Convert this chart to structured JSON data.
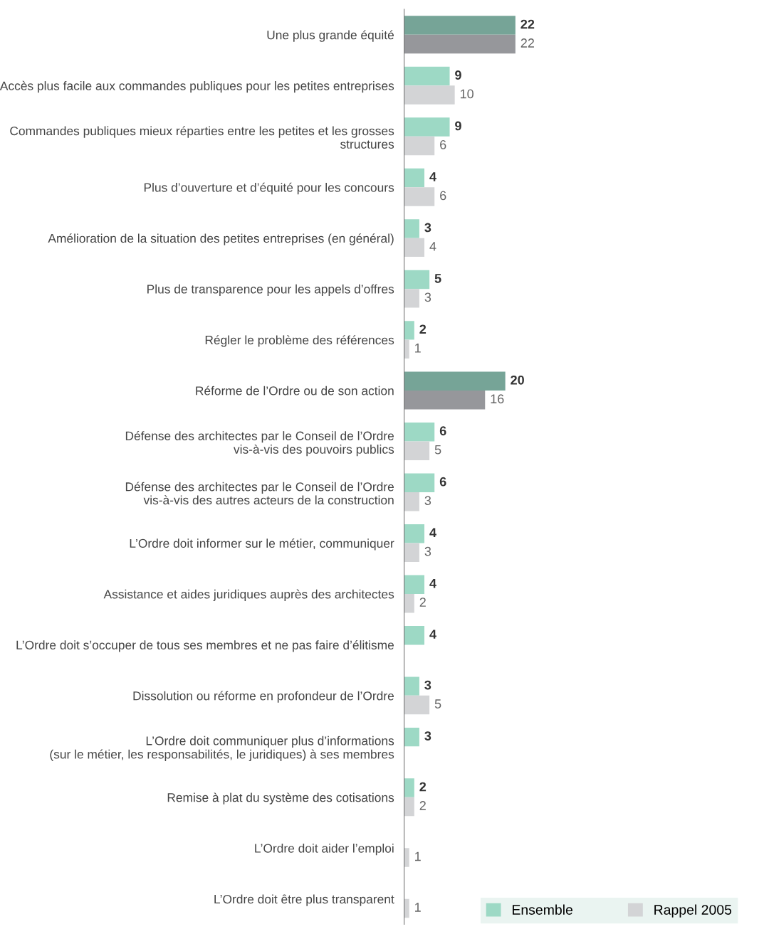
{
  "chart_data": {
    "type": "bar",
    "orientation": "horizontal",
    "categories": [
      "Une plus grande équité",
      "Accès plus facile aux commandes publiques pour les petites entreprises",
      "Commandes publiques mieux réparties entre les petites et les grosses\nstructures",
      "Plus d’ouverture et d’équité pour les concours",
      "Amélioration de la situation des petites entreprises (en général)",
      "Plus de transparence pour les appels d’offres",
      "Régler le problème des références",
      "Réforme de l’Ordre ou de son action",
      "Défense des architectes par le Conseil de l’Ordre\nvis-à-vis des pouvoirs publics",
      "Défense des architectes par le Conseil de l’Ordre\nvis-à-vis des autres acteurs de la construction",
      "L’Ordre doit informer sur le métier, communiquer",
      "Assistance et aides juridiques auprès des architectes",
      "L’Ordre doit s’occuper de tous ses membres et ne pas faire d’élitisme",
      "Dissolution ou réforme en profondeur de l’Ordre",
      "L’Ordre doit communiquer plus d’informations\n(sur le métier, les responsabilités, le juridiques) à ses membres",
      "Remise à plat du système des cotisations",
      "L’Ordre doit aider l’emploi",
      "L’Ordre doit être plus transparent"
    ],
    "series": [
      {
        "name": "Ensemble",
        "color": "#9dd9c5",
        "colors": [
          "#76a497",
          "#9dd9c5",
          "#9dd9c5",
          "#9dd9c5",
          "#9dd9c5",
          "#9dd9c5",
          "#9dd9c5",
          "#76a497",
          "#9dd9c5",
          "#9dd9c5",
          "#9dd9c5",
          "#9dd9c5",
          "#9dd9c5",
          "#9dd9c5",
          "#9dd9c5",
          "#9dd9c5",
          "#9dd9c5",
          "#9dd9c5"
        ],
        "values": [
          22,
          9,
          9,
          4,
          3,
          5,
          2,
          20,
          6,
          6,
          4,
          4,
          4,
          3,
          3,
          2,
          null,
          null
        ]
      },
      {
        "name": "Rappel 2005",
        "color": "#d3d4d6",
        "colors": [
          "#96979b",
          "#d3d4d6",
          "#d3d4d6",
          "#d3d4d6",
          "#d3d4d6",
          "#d3d4d6",
          "#d3d4d6",
          "#96979b",
          "#d3d4d6",
          "#d3d4d6",
          "#d3d4d6",
          "#d3d4d6",
          "#d3d4d6",
          "#d3d4d6",
          "#d3d4d6",
          "#d3d4d6",
          "#d3d4d6",
          "#d3d4d6"
        ],
        "values": [
          22,
          10,
          6,
          6,
          4,
          3,
          1,
          16,
          5,
          3,
          3,
          2,
          null,
          5,
          null,
          2,
          1,
          1
        ]
      }
    ],
    "data_labels": true,
    "legend": "bottom right",
    "grid": false
  }
}
